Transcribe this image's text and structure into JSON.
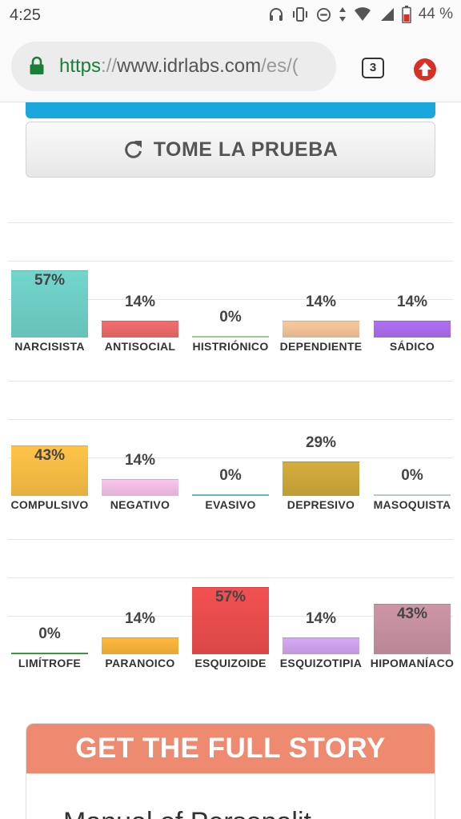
{
  "status_bar": {
    "time": "4:25",
    "battery": "44 %",
    "icons": [
      "headphones-icon",
      "vibrate-icon",
      "dnd-icon",
      "data-arrows-icon",
      "wifi-icon",
      "signal-icon",
      "battery-icon"
    ]
  },
  "browser": {
    "url_scheme": "https",
    "url_sep": "://",
    "url_host": "www.idrlabs.com",
    "url_path": "/es/(",
    "tab_count": "3",
    "icons": [
      "lock-icon",
      "update-icon"
    ],
    "colors": {
      "lock": "#188038",
      "update": "#d93025"
    }
  },
  "take_test": {
    "label": "TOME LA PRUEBA",
    "icon": "refresh-icon"
  },
  "chart_data": [
    {
      "type": "bar",
      "categories": [
        "NARCISISTA",
        "ANTISOCIAL",
        "HISTRIÓNICO",
        "DEPENDIENTE",
        "SÁDICO"
      ],
      "values": [
        57,
        14,
        0,
        14,
        14
      ],
      "value_labels": [
        "57%",
        "14%",
        "0%",
        "14%",
        "14%"
      ],
      "colors": [
        "#72d6cd",
        "#f46d6d",
        "#9fd88f",
        "#f9c99b",
        "#b070f4"
      ],
      "ylim": [
        0,
        100
      ]
    },
    {
      "type": "bar",
      "categories": [
        "COMPULSIVO",
        "NEGATIVO",
        "EVASIVO",
        "DEPRESIVO",
        "MASOQUISTA"
      ],
      "values": [
        43,
        14,
        0,
        29,
        0
      ],
      "value_labels": [
        "43%",
        "14%",
        "0%",
        "29%",
        "0%"
      ],
      "colors": [
        "#ffc347",
        "#fbc5ec",
        "#70bfd2",
        "#d4ad3c",
        "#c6d0e0"
      ],
      "ylim": [
        0,
        100
      ]
    },
    {
      "type": "bar",
      "categories": [
        "LIMÍTROFE",
        "PARANOICO",
        "ESQUIZOIDE",
        "ESQUIZOTIPIA",
        "HIPOMANÍACO"
      ],
      "values": [
        0,
        14,
        57,
        14,
        43
      ],
      "value_labels": [
        "0%",
        "14%",
        "57%",
        "14%",
        "43%"
      ],
      "colors": [
        "#3d9f3d",
        "#ffb83c",
        "#f25050",
        "#d5a8f6",
        "#cd96a6"
      ],
      "ylim": [
        0,
        100
      ]
    }
  ],
  "story": {
    "heading": "GET THE FULL STORY",
    "text": "Manual of Personalit"
  }
}
